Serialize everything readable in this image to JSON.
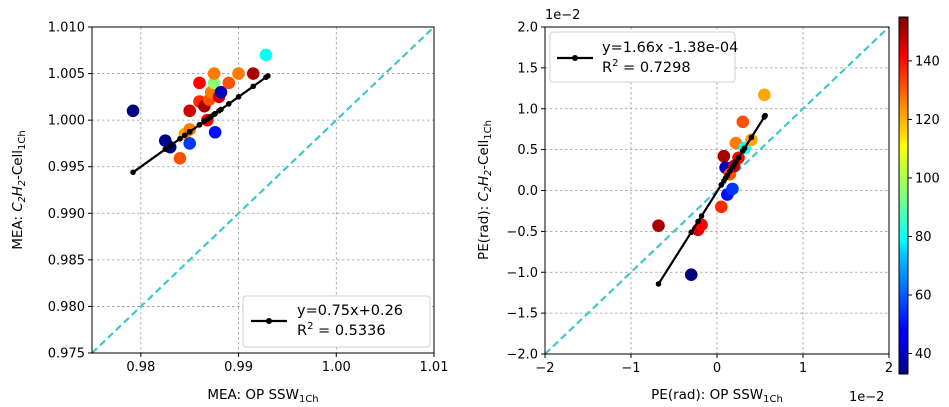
{
  "chart_data": [
    {
      "type": "scatter",
      "xlabel": "MEA: OP SSW",
      "xlabel_sub": "1Ch",
      "ylabel_prefix": "MEA: ",
      "ylabel_formula": "C2H2",
      "ylabel_mid": "-Cell",
      "ylabel_sub": "1Ch",
      "xlim": [
        0.975,
        1.01
      ],
      "ylim": [
        0.975,
        1.01
      ],
      "xticks": [
        0.98,
        0.99,
        1.0,
        1.01
      ],
      "xtick_labels": [
        "0.98",
        "0.99",
        "1.00",
        "1.01"
      ],
      "yticks": [
        0.975,
        0.98,
        0.985,
        0.99,
        0.995,
        1.0,
        1.005,
        1.01
      ],
      "ytick_labels": [
        "0.975",
        "0.980",
        "0.985",
        "0.990",
        "0.995",
        "1.000",
        "1.005",
        "1.010"
      ],
      "grid": true,
      "identity_line": true,
      "identity_color": "#40c8c8",
      "fit": {
        "label": "y=0.75x+0.26",
        "r2_prefix": "R",
        "r2_sup": "2",
        "r2_value": " = 0.5336",
        "slope": 0.75,
        "intercept": 0.26,
        "x_range": [
          0.9792,
          0.993
        ]
      },
      "legend_placement": "lower-right",
      "points": [
        {
          "x": 0.9792,
          "y": 1.001,
          "c": 30
        },
        {
          "x": 0.9825,
          "y": 0.9978,
          "c": 35
        },
        {
          "x": 0.983,
          "y": 0.9971,
          "c": 25
        },
        {
          "x": 0.984,
          "y": 0.9959,
          "c": 130
        },
        {
          "x": 0.9845,
          "y": 0.9985,
          "c": 120
        },
        {
          "x": 0.985,
          "y": 0.9975,
          "c": 55
        },
        {
          "x": 0.985,
          "y": 0.999,
          "c": 125
        },
        {
          "x": 0.985,
          "y": 1.001,
          "c": 145
        },
        {
          "x": 0.986,
          "y": 1.004,
          "c": 140
        },
        {
          "x": 0.986,
          "y": 1.002,
          "c": 135
        },
        {
          "x": 0.9865,
          "y": 1.0015,
          "c": 150
        },
        {
          "x": 0.987,
          "y": 1.0022,
          "c": 130
        },
        {
          "x": 0.9868,
          "y": 1.0,
          "c": 140
        },
        {
          "x": 0.9872,
          "y": 1.003,
          "c": 125
        },
        {
          "x": 0.9875,
          "y": 1.004,
          "c": 95
        },
        {
          "x": 0.9875,
          "y": 1.005,
          "c": 125
        },
        {
          "x": 0.9876,
          "y": 0.9987,
          "c": 50
        },
        {
          "x": 0.988,
          "y": 1.0025,
          "c": 145
        },
        {
          "x": 0.9882,
          "y": 1.003,
          "c": 40
        },
        {
          "x": 0.989,
          "y": 1.004,
          "c": 130
        },
        {
          "x": 0.99,
          "y": 1.005,
          "c": 125
        },
        {
          "x": 0.9915,
          "y": 1.005,
          "c": 150
        },
        {
          "x": 0.9928,
          "y": 1.007,
          "c": 80
        }
      ]
    },
    {
      "type": "scatter",
      "xlabel": "PE(rad): OP SSW",
      "xlabel_sub": "1Ch",
      "ylabel_prefix": "PE(rad): ",
      "ylabel_formula": "C2H2",
      "ylabel_mid": "-Cell",
      "ylabel_sub": "1Ch",
      "offset_text_top": "1e−2",
      "offset_text_bottom": "1e−2",
      "xlim": [
        -2,
        2
      ],
      "ylim": [
        -2,
        2
      ],
      "xticks": [
        -2,
        -1,
        0,
        1,
        2
      ],
      "xtick_labels": [
        "−2",
        "−1",
        "0",
        "1",
        "2"
      ],
      "yticks": [
        -2,
        -1.5,
        -1,
        -0.5,
        0,
        0.5,
        1,
        1.5,
        2
      ],
      "ytick_labels": [
        "−2.0",
        "−1.5",
        "−1.0",
        "−0.5",
        "0.0",
        "0.5",
        "1.0",
        "1.5",
        "2.0"
      ],
      "grid": true,
      "identity_line": true,
      "identity_color": "#40c8c8",
      "fit": {
        "label": "y=1.66x -1.38e-04",
        "r2_prefix": "R",
        "r2_sup": "2",
        "r2_value": " = 0.7298",
        "slope": 1.66,
        "intercept": -0.0138,
        "x_range": [
          -0.68,
          0.56
        ]
      },
      "legend_placement": "upper-left",
      "colorbar": {
        "min": 33,
        "max": 155,
        "ticks": [
          40,
          60,
          80,
          100,
          120,
          140
        ],
        "tick_labels": [
          "40",
          "60",
          "80",
          "100",
          "120",
          "140"
        ]
      },
      "points": [
        {
          "x": -0.68,
          "y": -0.43,
          "c": 150
        },
        {
          "x": -0.3,
          "y": -1.03,
          "c": 30
        },
        {
          "x": -0.22,
          "y": -0.48,
          "c": 145
        },
        {
          "x": -0.18,
          "y": -0.42,
          "c": 140
        },
        {
          "x": 0.05,
          "y": -0.2,
          "c": 135
        },
        {
          "x": 0.08,
          "y": 0.42,
          "c": 150
        },
        {
          "x": 0.1,
          "y": 0.28,
          "c": 40
        },
        {
          "x": 0.12,
          "y": -0.05,
          "c": 50
        },
        {
          "x": 0.15,
          "y": 0.2,
          "c": 130
        },
        {
          "x": 0.18,
          "y": 0.02,
          "c": 55
        },
        {
          "x": 0.2,
          "y": 0.3,
          "c": 145
        },
        {
          "x": 0.22,
          "y": 0.58,
          "c": 125
        },
        {
          "x": 0.25,
          "y": 0.4,
          "c": 140
        },
        {
          "x": 0.3,
          "y": 0.84,
          "c": 130
        },
        {
          "x": 0.32,
          "y": 0.52,
          "c": 80
        },
        {
          "x": 0.4,
          "y": 0.62,
          "c": 120
        },
        {
          "x": 0.55,
          "y": 1.17,
          "c": 120
        }
      ]
    }
  ]
}
